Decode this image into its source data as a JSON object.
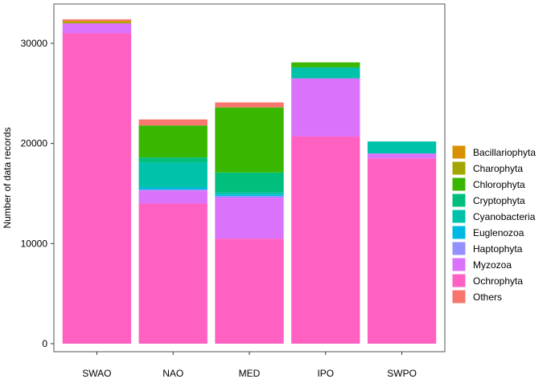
{
  "chart_data": {
    "type": "bar",
    "stacked": true,
    "categories": [
      "SWAO",
      "NAO",
      "MED",
      "IPO",
      "SWPO"
    ],
    "ylabel": "Number of data records",
    "xlabel": "",
    "ylim": [
      0,
      33000
    ],
    "yticks": [
      0,
      10000,
      20000,
      30000
    ],
    "grid": false,
    "legend_position": "right",
    "series": [
      {
        "name": "Ochrophyta",
        "color": "#FF61C3",
        "values": [
          31000,
          14000,
          10500,
          20700,
          18500
        ]
      },
      {
        "name": "Myzozoa",
        "color": "#DB72FB",
        "values": [
          1000,
          1300,
          4100,
          5800,
          500
        ]
      },
      {
        "name": "Haptophyta",
        "color": "#9590FF",
        "values": [
          0,
          100,
          150,
          0,
          0
        ]
      },
      {
        "name": "Euglenozoa",
        "color": "#00B9E3",
        "values": [
          0,
          200,
          150,
          0,
          0
        ]
      },
      {
        "name": "Cyanobacteria",
        "color": "#00C1AA",
        "values": [
          0,
          2500,
          200,
          1100,
          1200
        ]
      },
      {
        "name": "Cryptophyta",
        "color": "#00BF7D",
        "values": [
          0,
          500,
          2000,
          0,
          0
        ]
      },
      {
        "name": "Chlorophyta",
        "color": "#39B600",
        "values": [
          0,
          3200,
          6500,
          500,
          0
        ]
      },
      {
        "name": "Charophyta",
        "color": "#A3A500",
        "values": [
          150,
          0,
          0,
          0,
          0
        ]
      },
      {
        "name": "Bacillariophyta",
        "color": "#D89000",
        "values": [
          100,
          0,
          0,
          0,
          0
        ]
      },
      {
        "name": "Others",
        "color": "#F8766D",
        "values": [
          150,
          600,
          500,
          0,
          0
        ]
      }
    ],
    "legend_order": [
      "Bacillariophyta",
      "Charophyta",
      "Chlorophyta",
      "Cryptophyta",
      "Cyanobacteria",
      "Euglenozoa",
      "Haptophyta",
      "Myzozoa",
      "Ochrophyta",
      "Others"
    ]
  }
}
